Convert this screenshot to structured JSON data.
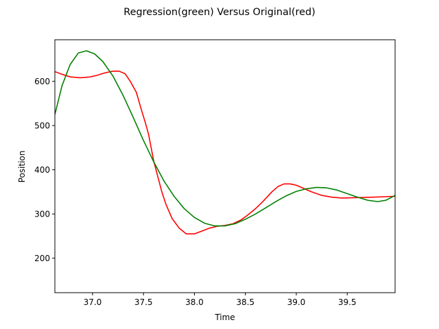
{
  "chart_data": {
    "type": "line",
    "title": "Regression(green) Versus Original(red)",
    "xlabel": "Time",
    "ylabel": "Position",
    "xlim": [
      36.63,
      39.97
    ],
    "ylim": [
      122,
      694
    ],
    "xticks": [
      37.0,
      37.5,
      38.0,
      38.5,
      39.0,
      39.5
    ],
    "xtick_labels": [
      "37.0",
      "37.5",
      "38.0",
      "38.5",
      "39.0",
      "39.5"
    ],
    "yticks": [
      200,
      300,
      400,
      500,
      600
    ],
    "ytick_labels": [
      "200",
      "300",
      "400",
      "500",
      "600"
    ],
    "grid": false,
    "series": [
      {
        "color": "#ff0000",
        "x": [
          36.63,
          36.7,
          36.78,
          36.88,
          36.98,
          37.05,
          37.12,
          37.2,
          37.26,
          37.32,
          37.37,
          37.43,
          37.48,
          37.52,
          37.55,
          37.6,
          37.64,
          37.68,
          37.72,
          37.78,
          37.85,
          37.92,
          38.0,
          38.08,
          38.15,
          38.22,
          38.3,
          38.38,
          38.46,
          38.52,
          38.6,
          38.68,
          38.76,
          38.82,
          38.88,
          38.94,
          39.0,
          39.07,
          39.15,
          39.25,
          39.35,
          39.45,
          39.6,
          39.75,
          39.97
        ],
        "y": [
          622,
          616,
          610,
          608,
          610,
          614,
          619,
          623,
          623,
          617,
          600,
          575,
          535,
          505,
          480,
          420,
          385,
          350,
          322,
          290,
          268,
          255,
          255,
          262,
          268,
          272,
          274,
          278,
          287,
          297,
          312,
          330,
          350,
          362,
          368,
          368,
          365,
          358,
          350,
          342,
          338,
          336,
          337,
          338,
          340
        ]
      },
      {
        "color": "#008000",
        "x": [
          36.63,
          36.7,
          36.78,
          36.86,
          36.94,
          37.02,
          37.1,
          37.2,
          37.3,
          37.4,
          37.5,
          37.6,
          37.7,
          37.8,
          37.9,
          38.0,
          38.1,
          38.2,
          38.3,
          38.4,
          38.5,
          38.6,
          38.7,
          38.8,
          38.9,
          39.0,
          39.1,
          39.2,
          39.3,
          39.4,
          39.5,
          39.6,
          39.7,
          39.8,
          39.88,
          39.97
        ],
        "y": [
          525,
          590,
          638,
          664,
          669,
          662,
          645,
          612,
          568,
          518,
          466,
          418,
          375,
          340,
          312,
          292,
          279,
          273,
          273,
          278,
          288,
          300,
          314,
          328,
          341,
          351,
          357,
          360,
          359,
          354,
          346,
          338,
          331,
          328,
          331,
          342
        ]
      }
    ]
  }
}
